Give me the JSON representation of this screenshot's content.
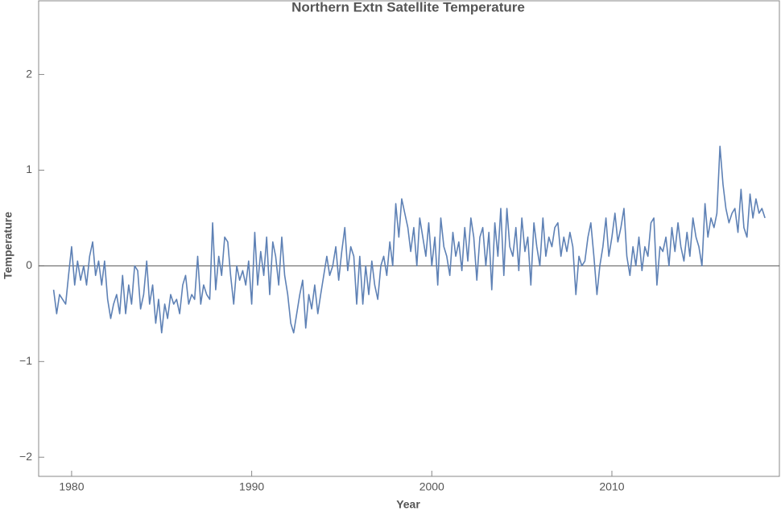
{
  "chart_data": {
    "type": "line",
    "title": "Northern Extn Satellite Temperature",
    "x_label": "Year",
    "y_label": "Temperature",
    "x": [
      1979,
      1979.17,
      1979.33,
      1979.5,
      1979.67,
      1979.83,
      1980,
      1980.17,
      1980.33,
      1980.5,
      1980.67,
      1980.83,
      1981,
      1981.17,
      1981.33,
      1981.5,
      1981.67,
      1981.83,
      1982,
      1982.17,
      1982.33,
      1982.5,
      1982.67,
      1982.83,
      1983,
      1983.17,
      1983.33,
      1983.5,
      1983.67,
      1983.83,
      1984,
      1984.17,
      1984.33,
      1984.5,
      1984.67,
      1984.83,
      1985,
      1985.17,
      1985.33,
      1985.5,
      1985.67,
      1985.83,
      1986,
      1986.17,
      1986.33,
      1986.5,
      1986.67,
      1986.83,
      1987,
      1987.17,
      1987.33,
      1987.5,
      1987.67,
      1987.83,
      1988,
      1988.17,
      1988.33,
      1988.5,
      1988.67,
      1988.83,
      1989,
      1989.17,
      1989.33,
      1989.5,
      1989.67,
      1989.83,
      1990,
      1990.17,
      1990.33,
      1990.5,
      1990.67,
      1990.83,
      1991,
      1991.17,
      1991.33,
      1991.5,
      1991.67,
      1991.83,
      1992,
      1992.17,
      1992.33,
      1992.5,
      1992.67,
      1992.83,
      1993,
      1993.17,
      1993.33,
      1993.5,
      1993.67,
      1993.83,
      1994,
      1994.17,
      1994.33,
      1994.5,
      1994.67,
      1994.83,
      1995,
      1995.17,
      1995.33,
      1995.5,
      1995.67,
      1995.83,
      1996,
      1996.17,
      1996.33,
      1996.5,
      1996.67,
      1996.83,
      1997,
      1997.17,
      1997.33,
      1997.5,
      1997.67,
      1997.83,
      1998,
      1998.17,
      1998.33,
      1998.5,
      1998.67,
      1998.83,
      1999,
      1999.17,
      1999.33,
      1999.5,
      1999.67,
      1999.83,
      2000,
      2000.17,
      2000.33,
      2000.5,
      2000.67,
      2000.83,
      2001,
      2001.17,
      2001.33,
      2001.5,
      2001.67,
      2001.83,
      2002,
      2002.17,
      2002.33,
      2002.5,
      2002.67,
      2002.83,
      2003,
      2003.17,
      2003.33,
      2003.5,
      2003.67,
      2003.83,
      2004,
      2004.17,
      2004.33,
      2004.5,
      2004.67,
      2004.83,
      2005,
      2005.17,
      2005.33,
      2005.5,
      2005.67,
      2005.83,
      2006,
      2006.17,
      2006.33,
      2006.5,
      2006.67,
      2006.83,
      2007,
      2007.17,
      2007.33,
      2007.5,
      2007.67,
      2007.83,
      2008,
      2008.17,
      2008.33,
      2008.5,
      2008.67,
      2008.83,
      2009,
      2009.17,
      2009.33,
      2009.5,
      2009.67,
      2009.83,
      2010,
      2010.17,
      2010.33,
      2010.5,
      2010.67,
      2010.83,
      2011,
      2011.17,
      2011.33,
      2011.5,
      2011.67,
      2011.83,
      2012,
      2012.17,
      2012.33,
      2012.5,
      2012.67,
      2012.83,
      2013,
      2013.17,
      2013.33,
      2013.5,
      2013.67,
      2013.83,
      2014,
      2014.17,
      2014.33,
      2014.5,
      2014.67,
      2014.83,
      2015,
      2015.17,
      2015.33,
      2015.5,
      2015.67,
      2015.83,
      2016,
      2016.17,
      2016.33,
      2016.5,
      2016.67,
      2016.83,
      2017,
      2017.17,
      2017.33,
      2017.5,
      2017.67,
      2017.83,
      2018,
      2018.17,
      2018.33,
      2018.5
    ],
    "series": [
      {
        "color": "#5e81b5",
        "values": [
          -0.25,
          -0.5,
          -0.3,
          -0.35,
          -0.4,
          -0.1,
          0.2,
          -0.2,
          0.05,
          -0.15,
          0,
          -0.2,
          0.1,
          0.25,
          -0.1,
          0.05,
          -0.2,
          0.05,
          -0.35,
          -0.55,
          -0.4,
          -0.3,
          -0.5,
          -0.1,
          -0.5,
          -0.2,
          -0.4,
          0,
          -0.05,
          -0.45,
          -0.3,
          0.05,
          -0.4,
          -0.2,
          -0.6,
          -0.35,
          -0.7,
          -0.4,
          -0.55,
          -0.3,
          -0.4,
          -0.35,
          -0.5,
          -0.2,
          -0.1,
          -0.4,
          -0.3,
          -0.35,
          0.1,
          -0.4,
          -0.2,
          -0.3,
          -0.35,
          0.45,
          -0.25,
          0.1,
          -0.1,
          0.3,
          0.25,
          -0.1,
          -0.4,
          0,
          -0.15,
          -0.05,
          -0.2,
          0.05,
          -0.4,
          0.35,
          -0.2,
          0.15,
          -0.1,
          0.3,
          -0.3,
          0.25,
          0.1,
          -0.2,
          0.3,
          -0.1,
          -0.3,
          -0.6,
          -0.7,
          -0.5,
          -0.3,
          -0.15,
          -0.65,
          -0.3,
          -0.45,
          -0.2,
          -0.5,
          -0.3,
          -0.1,
          0.1,
          -0.1,
          0,
          0.2,
          -0.15,
          0.15,
          0.4,
          -0.05,
          0.2,
          0.1,
          -0.4,
          0.1,
          -0.4,
          0,
          -0.3,
          0.05,
          -0.2,
          -0.35,
          0,
          0.1,
          -0.1,
          0.25,
          0,
          0.65,
          0.3,
          0.7,
          0.55,
          0.4,
          0.15,
          0.4,
          0,
          0.5,
          0.3,
          0.1,
          0.45,
          0,
          0.3,
          -0.2,
          0.5,
          0.2,
          0.1,
          -0.1,
          0.35,
          0.1,
          0.25,
          -0.05,
          0.4,
          0.05,
          0.5,
          0.3,
          -0.15,
          0.3,
          0.4,
          0,
          0.35,
          -0.25,
          0.45,
          0.1,
          0.6,
          -0.1,
          0.6,
          0.2,
          0.1,
          0.4,
          -0.05,
          0.5,
          0.15,
          0.3,
          -0.2,
          0.45,
          0.2,
          0,
          0.5,
          0.1,
          0.3,
          0.2,
          0.4,
          0.45,
          0.1,
          0.3,
          0.15,
          0.35,
          0.2,
          -0.3,
          0.1,
          0,
          0.05,
          0.3,
          0.45,
          0.1,
          -0.3,
          0,
          0.2,
          0.5,
          0.1,
          0.3,
          0.55,
          0.25,
          0.4,
          0.6,
          0.1,
          -0.1,
          0.2,
          0,
          0.3,
          -0.05,
          0.2,
          0.1,
          0.45,
          0.5,
          -0.2,
          0.2,
          0.15,
          0.3,
          0,
          0.4,
          0.15,
          0.45,
          0.2,
          0.05,
          0.35,
          0.1,
          0.5,
          0.3,
          0.2,
          0,
          0.65,
          0.3,
          0.5,
          0.4,
          0.55,
          1.25,
          0.85,
          0.6,
          0.45,
          0.55,
          0.6,
          0.35,
          0.8,
          0.4,
          0.3,
          0.75,
          0.5,
          0.7,
          0.55,
          0.6,
          0.5
        ]
      }
    ],
    "xlim": [
      1978.17,
      2019.3
    ],
    "ylim": [
      -2.2,
      2.77
    ],
    "xticks": [
      1980,
      1990,
      2000,
      2010
    ],
    "yticks": [
      {
        "value": -2,
        "label": "−2"
      },
      {
        "value": -1,
        "label": "−1"
      },
      0,
      1,
      2
    ]
  }
}
